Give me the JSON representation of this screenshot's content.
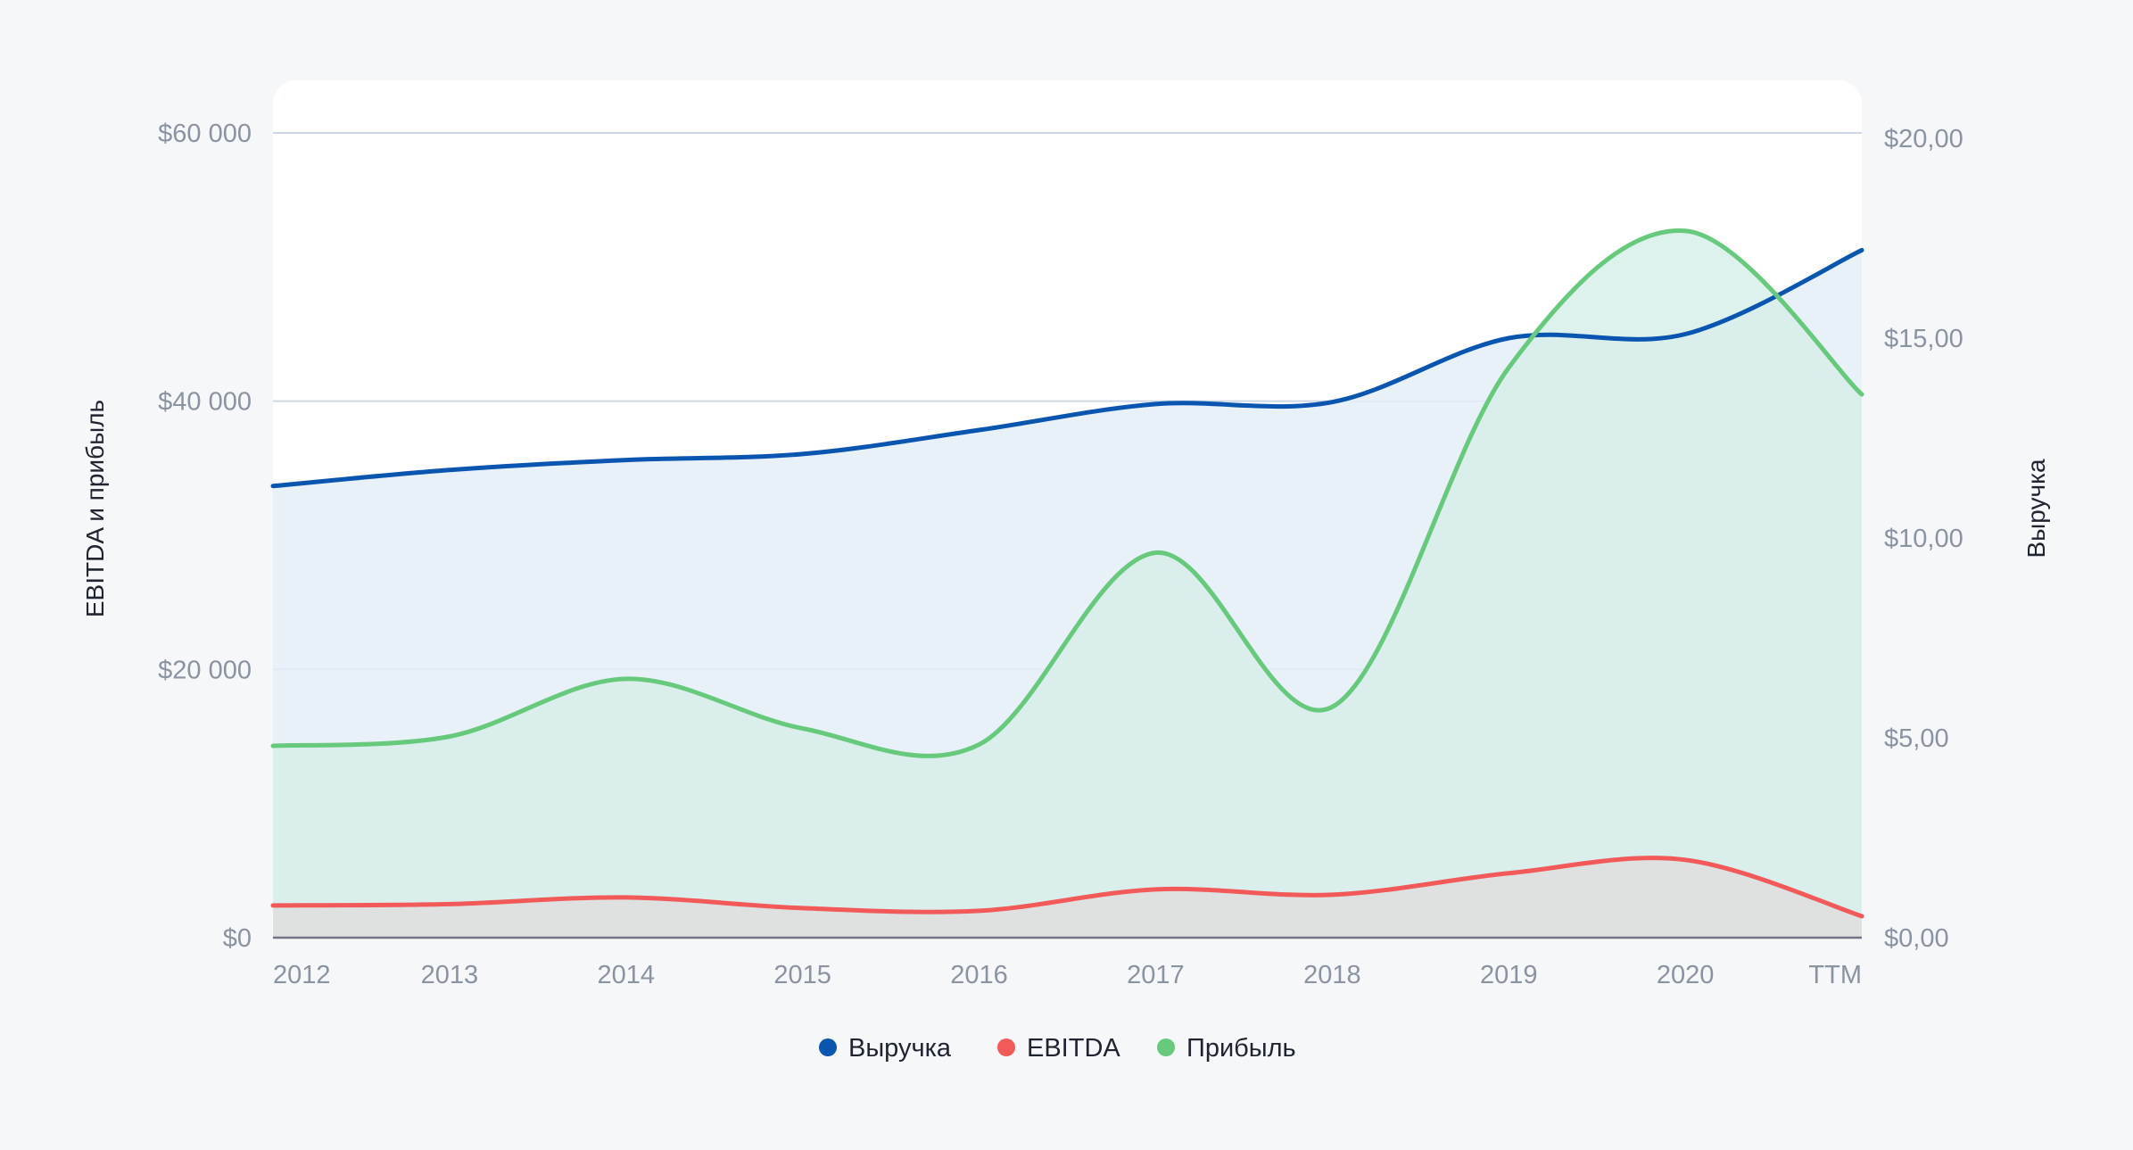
{
  "chart_data": {
    "type": "area",
    "categories": [
      "2012",
      "2013",
      "2014",
      "2015",
      "2016",
      "2017",
      "2018",
      "2019",
      "2020",
      "TTM"
    ],
    "left_axis": {
      "label": "EBITDA и прибыль",
      "range": [
        0,
        60000
      ],
      "ticks": [
        0,
        20000,
        40000,
        60000
      ],
      "tick_labels": [
        "$0",
        "$20 000",
        "$40 000",
        "$60 000"
      ]
    },
    "right_axis": {
      "label": "Выручка",
      "range": [
        0,
        20
      ],
      "ticks": [
        0,
        5,
        10,
        15,
        20
      ],
      "tick_labels": [
        "$0,00",
        "$5,00",
        "$10,00",
        "$15,00",
        "$20,00"
      ]
    },
    "series": [
      {
        "name": "Выручка",
        "axis": "right",
        "color": "#0a55b0",
        "fill": "#e4edf7",
        "values": [
          11.3,
          11.7,
          11.95,
          12.1,
          12.7,
          13.35,
          13.4,
          15.0,
          15.1,
          17.2
        ]
      },
      {
        "name": "Прибыль",
        "axis": "left",
        "color": "#66c97b",
        "fill": "#d7eeea",
        "values": [
          14300,
          15000,
          19300,
          15600,
          14400,
          28700,
          17200,
          42500,
          52700,
          40500
        ]
      },
      {
        "name": "EBITDA",
        "axis": "left",
        "color": "#f25a5a",
        "fill": "#dedede",
        "values": [
          2400,
          2500,
          3000,
          2200,
          2000,
          3600,
          3200,
          4800,
          5800,
          1600
        ]
      }
    ],
    "legend": {
      "position": "bottom-center",
      "items": [
        {
          "name": "Выручка",
          "color": "#0a55b0"
        },
        {
          "name": "EBITDA",
          "color": "#f25a5a"
        },
        {
          "name": "Прибыль",
          "color": "#66c97b"
        }
      ]
    },
    "grid": true
  }
}
